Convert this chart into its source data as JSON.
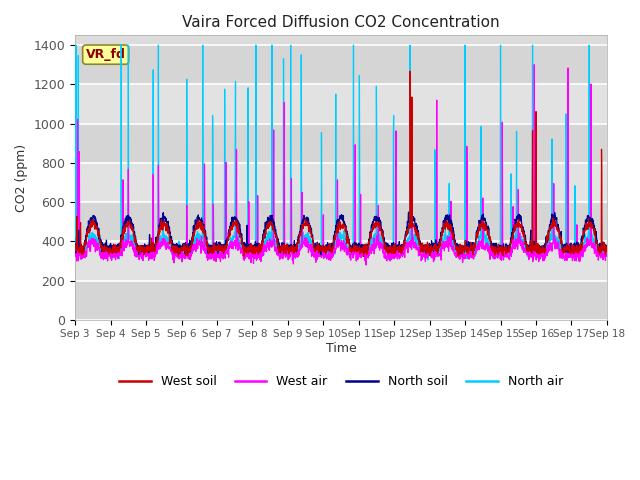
{
  "title": "Vaira Forced Diffusion CO2 Concentration",
  "xlabel": "Time",
  "ylabel": "CO2 (ppm)",
  "ylim": [
    0,
    1450
  ],
  "yticks": [
    0,
    200,
    400,
    600,
    800,
    1000,
    1200,
    1400
  ],
  "label_box_text": "VR_fd",
  "label_box_color": "#ffff99",
  "label_box_text_color": "#8b0000",
  "plot_bg_color": "#dcdcdc",
  "fig_bg_color": "#ffffff",
  "colors": {
    "west_soil": "#cc0000",
    "west_air": "#ff00ff",
    "north_soil": "#00008b",
    "north_air": "#00ccff"
  },
  "x_tick_labels": [
    "Sep 3",
    "Sep 4",
    "Sep 5",
    "Sep 6",
    "Sep 7",
    "Sep 8",
    "Sep 9",
    "Sep 10",
    "Sep 11",
    "Sep 12",
    "Sep 13",
    "Sep 14",
    "Sep 15",
    "Sep 16",
    "Sep 17",
    "Sep 18"
  ],
  "legend_entries": [
    "West soil",
    "West air",
    "North soil",
    "North air"
  ],
  "figsize": [
    6.4,
    4.8
  ],
  "dpi": 100
}
